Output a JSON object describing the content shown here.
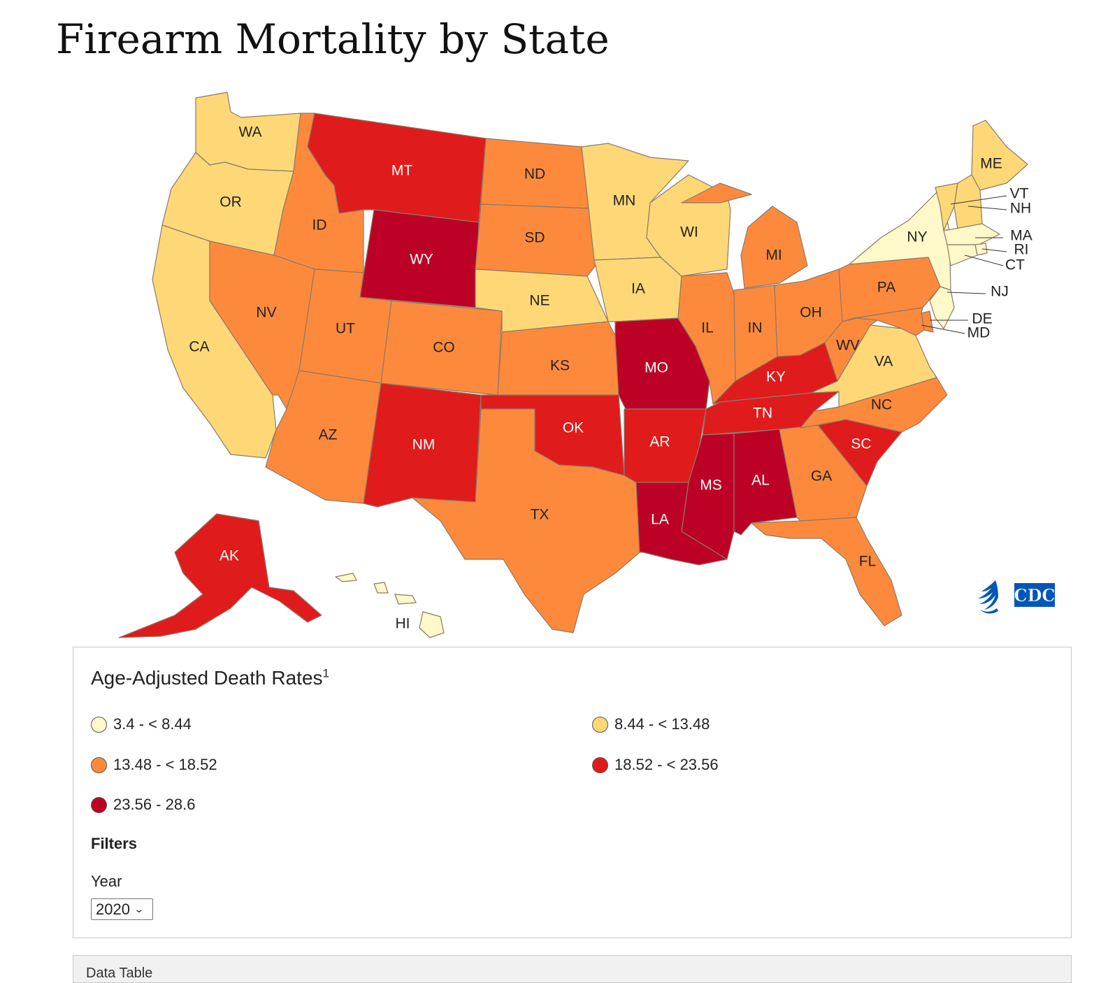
{
  "page": {
    "title": "Firearm Mortality by State"
  },
  "colors": {
    "bin1": "#fff8c8",
    "bin2": "#fed877",
    "bin3": "#fd8a3c",
    "bin4": "#e01b1b",
    "bin5": "#bd0026",
    "label_dark": "#222222",
    "label_light": "#ffffff"
  },
  "map": {
    "states": [
      {
        "code": "WA",
        "label": "WA",
        "bin": 2
      },
      {
        "code": "OR",
        "label": "OR",
        "bin": 2
      },
      {
        "code": "CA",
        "label": "CA",
        "bin": 2
      },
      {
        "code": "ID",
        "label": "ID",
        "bin": 3
      },
      {
        "code": "NV",
        "label": "NV",
        "bin": 3
      },
      {
        "code": "MT",
        "label": "MT",
        "bin": 4
      },
      {
        "code": "WY",
        "label": "WY",
        "bin": 5
      },
      {
        "code": "UT",
        "label": "UT",
        "bin": 3
      },
      {
        "code": "AZ",
        "label": "AZ",
        "bin": 3
      },
      {
        "code": "CO",
        "label": "CO",
        "bin": 3
      },
      {
        "code": "NM",
        "label": "NM",
        "bin": 4
      },
      {
        "code": "ND",
        "label": "ND",
        "bin": 3
      },
      {
        "code": "SD",
        "label": "SD",
        "bin": 3
      },
      {
        "code": "NE",
        "label": "NE",
        "bin": 2
      },
      {
        "code": "KS",
        "label": "KS",
        "bin": 3
      },
      {
        "code": "OK",
        "label": "OK",
        "bin": 4
      },
      {
        "code": "TX",
        "label": "TX",
        "bin": 3
      },
      {
        "code": "MN",
        "label": "MN",
        "bin": 2
      },
      {
        "code": "IA",
        "label": "IA",
        "bin": 2
      },
      {
        "code": "MO",
        "label": "MO",
        "bin": 5
      },
      {
        "code": "AR",
        "label": "AR",
        "bin": 4
      },
      {
        "code": "LA",
        "label": "LA",
        "bin": 5
      },
      {
        "code": "WI",
        "label": "WI",
        "bin": 2
      },
      {
        "code": "IL",
        "label": "IL",
        "bin": 3
      },
      {
        "code": "MI",
        "label": "MI",
        "bin": 3
      },
      {
        "code": "IN",
        "label": "IN",
        "bin": 3
      },
      {
        "code": "OH",
        "label": "OH",
        "bin": 3
      },
      {
        "code": "KY",
        "label": "KY",
        "bin": 4
      },
      {
        "code": "TN",
        "label": "TN",
        "bin": 4
      },
      {
        "code": "MS",
        "label": "MS",
        "bin": 5
      },
      {
        "code": "AL",
        "label": "AL",
        "bin": 5
      },
      {
        "code": "GA",
        "label": "GA",
        "bin": 3
      },
      {
        "code": "FL",
        "label": "FL",
        "bin": 3
      },
      {
        "code": "SC",
        "label": "SC",
        "bin": 4
      },
      {
        "code": "NC",
        "label": "NC",
        "bin": 3
      },
      {
        "code": "VA",
        "label": "VA",
        "bin": 2
      },
      {
        "code": "WV",
        "label": "WV",
        "bin": 3
      },
      {
        "code": "PA",
        "label": "PA",
        "bin": 3
      },
      {
        "code": "NY",
        "label": "NY",
        "bin": 1
      },
      {
        "code": "ME",
        "label": "ME",
        "bin": 2
      },
      {
        "code": "VT",
        "label": "VT",
        "bin": 2
      },
      {
        "code": "NH",
        "label": "NH",
        "bin": 2
      },
      {
        "code": "MA",
        "label": "MA",
        "bin": 1
      },
      {
        "code": "RI",
        "label": "RI",
        "bin": 1
      },
      {
        "code": "CT",
        "label": "CT",
        "bin": 1
      },
      {
        "code": "NJ",
        "label": "NJ",
        "bin": 1
      },
      {
        "code": "DE",
        "label": "DE",
        "bin": 3
      },
      {
        "code": "MD",
        "label": "MD",
        "bin": 3
      },
      {
        "code": "AK",
        "label": "AK",
        "bin": 4
      },
      {
        "code": "HI",
        "label": "HI",
        "bin": 1
      }
    ]
  },
  "logo": {
    "text": "CDC",
    "color": "#0057b8"
  },
  "legend": {
    "title": "Age-Adjusted Death Rates",
    "footnote": "1",
    "items": [
      {
        "label": "3.4 - < 8.44",
        "color": "#fff8c8"
      },
      {
        "label": "8.44 - < 13.48",
        "color": "#fed877"
      },
      {
        "label": "13.48 - < 18.52",
        "color": "#fd8a3c"
      },
      {
        "label": "18.52 - < 23.56",
        "color": "#e01b1b"
      },
      {
        "label": "23.56 - 28.6",
        "color": "#bd0026"
      }
    ]
  },
  "filters": {
    "heading": "Filters",
    "year_label": "Year",
    "year_value": "2020"
  },
  "data_table": {
    "label": "Data Table"
  }
}
